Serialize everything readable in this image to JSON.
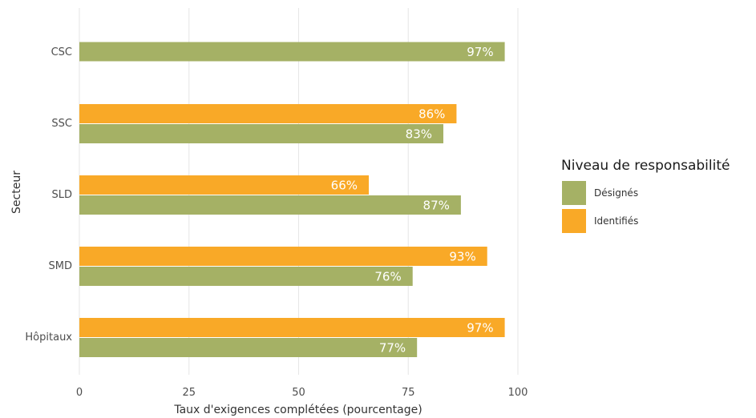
{
  "chart_data": {
    "type": "bar",
    "orientation": "horizontal",
    "categories": [
      "CSC",
      "SSC",
      "SLD",
      "SMD",
      "Hôpitaux"
    ],
    "series": [
      {
        "name": "Désignés",
        "color": "#a5b165",
        "values": [
          97,
          83,
          87,
          76,
          77
        ],
        "labels": [
          "97%",
          "83%",
          "87%",
          "76%",
          "77%"
        ]
      },
      {
        "name": "Identifiés",
        "color": "#f9a927",
        "values": [
          null,
          86,
          66,
          93,
          97
        ],
        "labels": [
          null,
          "86%",
          "66%",
          "93%",
          "97%"
        ]
      }
    ],
    "xlabel": "Taux d'exigences complétées (pourcentage)",
    "ylabel": "Secteur",
    "xlim": [
      0,
      100
    ],
    "xticks": [
      "0",
      "25",
      "50",
      "75",
      "100"
    ],
    "grid": true,
    "legend": {
      "title": "Niveau de responsabilité",
      "position": "right"
    }
  }
}
